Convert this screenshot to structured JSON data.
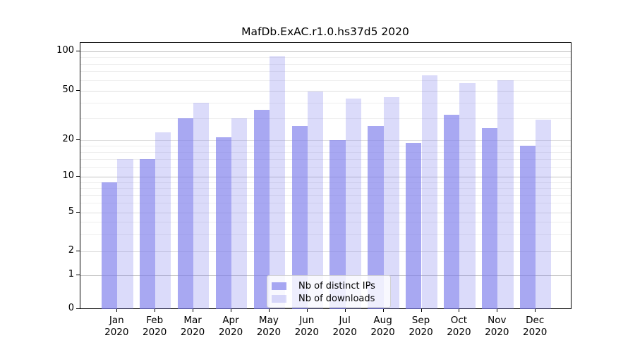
{
  "chart_data": {
    "type": "bar",
    "title": "MafDb.ExAC.r1.0.hs37d5 2020",
    "categories": [
      "Jan",
      "Feb",
      "Mar",
      "Apr",
      "May",
      "Jun",
      "Jul",
      "Aug",
      "Sep",
      "Oct",
      "Nov",
      "Dec"
    ],
    "year_label": "2020",
    "series": [
      {
        "name": "Nb of distinct IPs",
        "color": "rgba(123,123,235,0.66)",
        "values": [
          9,
          14,
          30,
          21,
          35,
          26,
          20,
          26,
          19,
          32,
          25,
          18
        ]
      },
      {
        "name": "Nb of downloads",
        "color": "rgba(123,123,235,0.27)",
        "values": [
          14,
          23,
          40,
          30,
          91,
          49,
          43,
          44,
          65,
          57,
          60,
          29
        ]
      }
    ],
    "y_axis": {
      "tick_labels": [
        "100",
        "50",
        "20",
        "10",
        "5",
        "2",
        "1",
        "0"
      ],
      "tick_values": [
        100,
        50,
        20,
        10,
        5,
        2,
        1,
        0
      ],
      "decade_lines": [
        100,
        10,
        1
      ],
      "minor_lines": [
        3,
        4,
        6,
        7,
        8,
        9,
        12,
        14,
        16,
        18,
        30,
        40,
        60,
        70,
        80,
        90
      ],
      "scale": "log-like, zero at baseline",
      "range": [
        0,
        100
      ]
    },
    "legend": {
      "position": "inside-bottom-center"
    }
  }
}
